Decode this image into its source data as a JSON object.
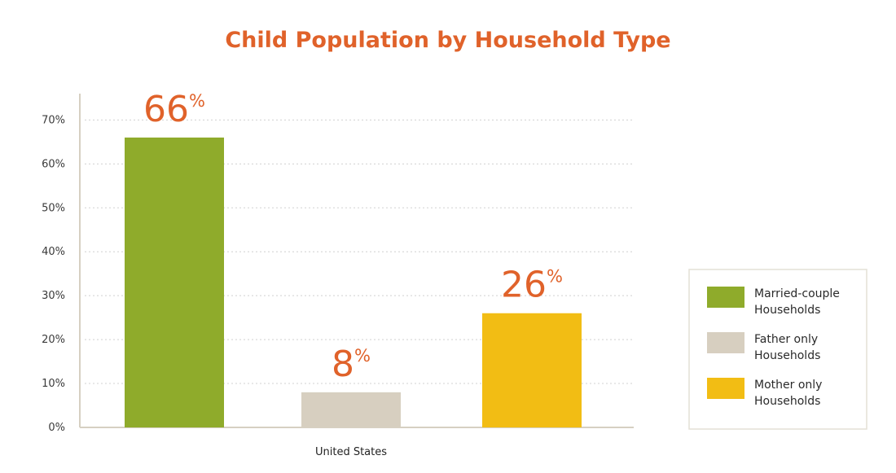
{
  "chart_data": {
    "type": "bar",
    "title": "Child Population by Household Type",
    "categories": [
      "United States"
    ],
    "series": [
      {
        "name": "Married-couple Households",
        "legend_lines": [
          "Married-couple",
          "Households"
        ],
        "value": 66,
        "label_number": "66",
        "label_unit": "%",
        "color": "#8fab2b"
      },
      {
        "name": "Father only Households",
        "legend_lines": [
          "Father only",
          "Households"
        ],
        "value": 8,
        "label_number": "8",
        "label_unit": "%",
        "color": "#d7cfc0"
      },
      {
        "name": "Mother only Households",
        "legend_lines": [
          "Mother only",
          "Households"
        ],
        "value": 26,
        "label_number": "26",
        "label_unit": "%",
        "color": "#f2bd14"
      }
    ],
    "yticks": [
      {
        "value": 0,
        "label": "0%"
      },
      {
        "value": 10,
        "label": "10%"
      },
      {
        "value": 20,
        "label": "20%"
      },
      {
        "value": 30,
        "label": "30%"
      },
      {
        "value": 40,
        "label": "40%"
      },
      {
        "value": 50,
        "label": "50%"
      },
      {
        "value": 60,
        "label": "60%"
      },
      {
        "value": 70,
        "label": "70%"
      }
    ],
    "ylim": [
      0,
      76
    ],
    "grid": true,
    "legend_position": "right",
    "xlabel": "",
    "ylabel": ""
  },
  "colors": {
    "title": "#e0622a",
    "value_label": "#e0622a",
    "axis": "#d6d0c2",
    "grid": "#d0d0d0",
    "legend_border": "#e4e0d6"
  }
}
